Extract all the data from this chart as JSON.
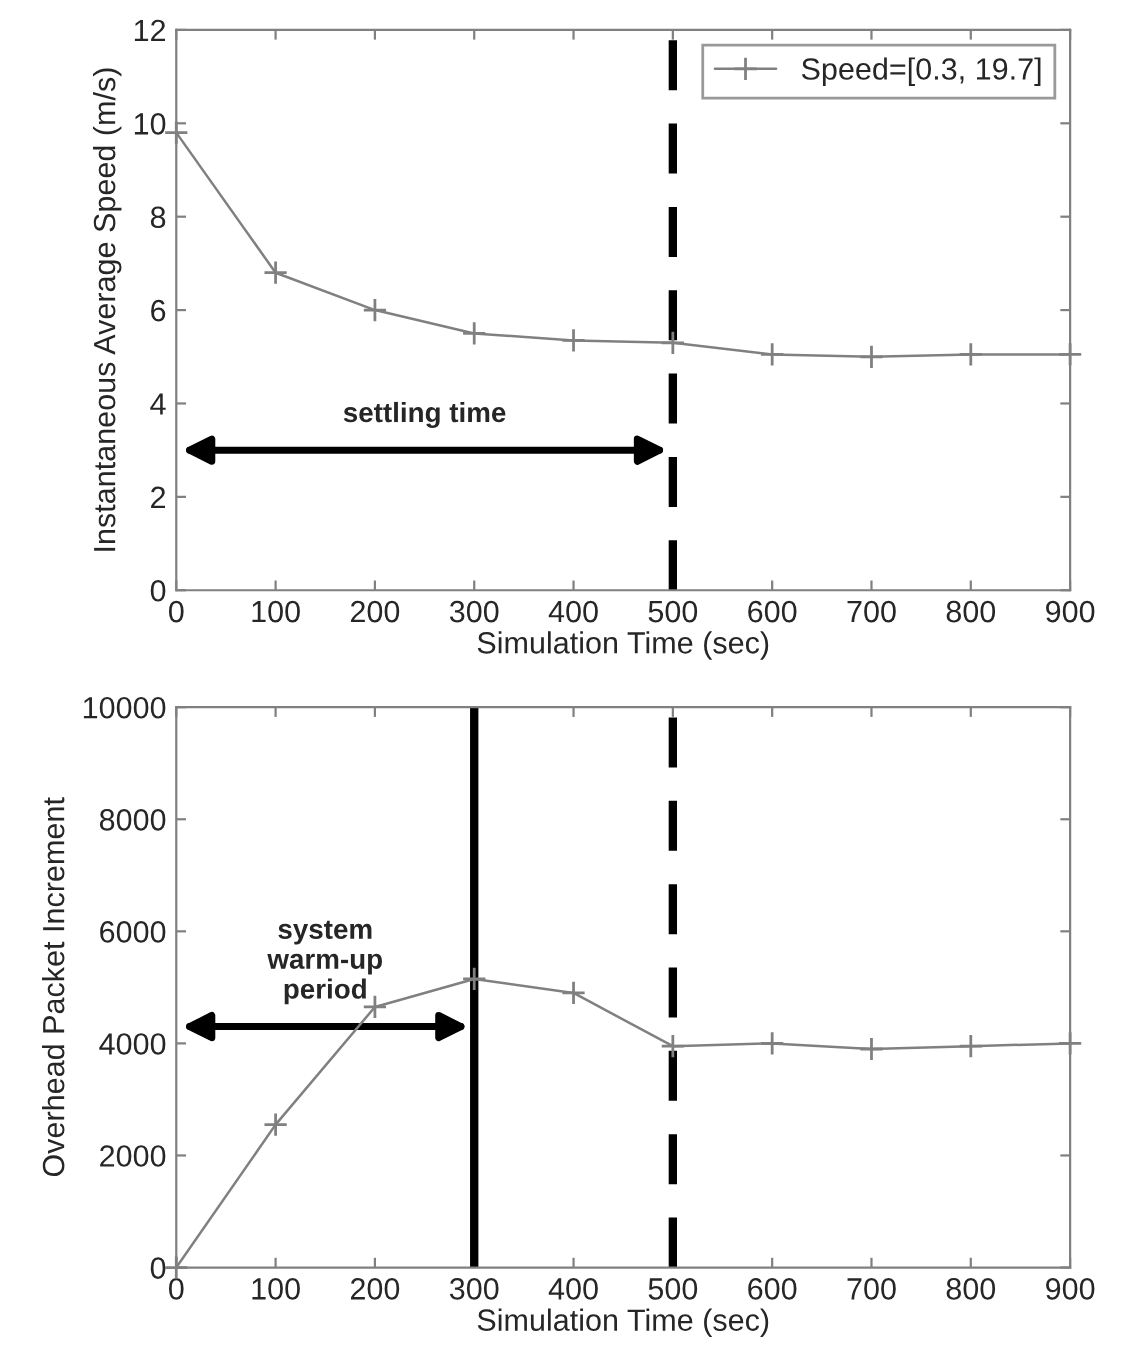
{
  "chart_data": [
    {
      "type": "line",
      "xlabel": "Simulation Time (sec)",
      "ylabel": "Instantaneous Average Speed (m/s)",
      "x": [
        0,
        100,
        200,
        300,
        400,
        500,
        600,
        700,
        800,
        900
      ],
      "series": [
        {
          "name": "Speed=[0.3, 19.7]",
          "color": "#808080",
          "values": [
            9.8,
            6.8,
            6.0,
            5.5,
            5.35,
            5.3,
            5.05,
            5.0,
            5.05,
            5.05
          ]
        }
      ],
      "xlim": [
        0,
        900
      ],
      "xticks": [
        0,
        100,
        200,
        300,
        400,
        500,
        600,
        700,
        800,
        900
      ],
      "ylim": [
        0,
        12
      ],
      "yticks": [
        0,
        2,
        4,
        6,
        8,
        10,
        12
      ],
      "ref_lines": [
        {
          "axis": "x",
          "value": 500,
          "color": "#000000",
          "line_style": "dashed"
        }
      ],
      "annotations": [
        "settling time"
      ],
      "marker": "cross",
      "grid": false,
      "legend": "top right"
    },
    {
      "type": "line",
      "xlabel": "Simulation Time (sec)",
      "ylabel": "Overhead Packet Increment",
      "x": [
        0,
        100,
        200,
        300,
        400,
        500,
        600,
        700,
        800,
        900
      ],
      "series": [
        {
          "color": "#808080",
          "values": [
            0,
            2550,
            4650,
            5150,
            4900,
            3950,
            4000,
            3900,
            3950,
            4000
          ]
        }
      ],
      "xlim": [
        0,
        900
      ],
      "xticks": [
        0,
        100,
        200,
        300,
        400,
        500,
        600,
        700,
        800,
        900
      ],
      "ylim": [
        0,
        10000
      ],
      "yticks": [
        0,
        2000,
        4000,
        6000,
        8000,
        10000
      ],
      "ref_lines": [
        {
          "axis": "x",
          "value": 300,
          "color": "#000000",
          "line_style": "solid"
        },
        {
          "axis": "x",
          "value": 500,
          "color": "#000000",
          "line_style": "dashed"
        }
      ],
      "annotations": [
        "system\nwarm-up\nperiod"
      ],
      "marker": "cross",
      "grid": false
    }
  ]
}
